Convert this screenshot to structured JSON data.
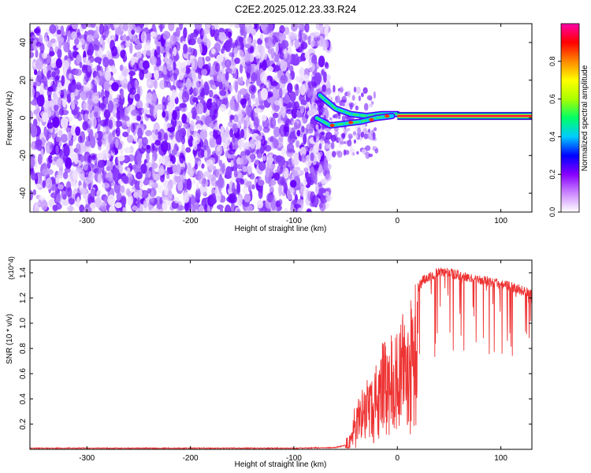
{
  "title": "C2E2.2025.012.23.33.R24",
  "chart_data": [
    {
      "type": "heatmap",
      "xlabel": "Height of straight line (km)",
      "ylabel": "Frequency (Hz)",
      "xlim": [
        -355,
        130
      ],
      "ylim": [
        -50,
        50
      ],
      "xticks": [
        -300,
        -200,
        -100,
        0,
        100
      ],
      "yticks": [
        -40,
        -20,
        0,
        20,
        40
      ],
      "grid": false,
      "colorbar": {
        "label": "Normalized spectral amplitude",
        "range": [
          0,
          1
        ],
        "ticks": [
          0.0,
          0.2,
          0.4,
          0.6,
          0.8
        ],
        "colors": [
          "#ffffff",
          "#cc88ff",
          "#8800ff",
          "#0000ff",
          "#00ccff",
          "#00ff66",
          "#aaff00",
          "#ffff00",
          "#ff8800",
          "#ff0000",
          "#ff00aa"
        ]
      },
      "features": {
        "noise_region_x": [
          -355,
          -72
        ],
        "transition_region_x": [
          -78,
          0
        ],
        "upper_branch": [
          [
            -75,
            12
          ],
          [
            -60,
            5
          ],
          [
            -45,
            2
          ],
          [
            -30,
            1
          ],
          [
            -15,
            2
          ],
          [
            0,
            2
          ]
        ],
        "lower_branch": [
          [
            -78,
            0
          ],
          [
            -65,
            -4
          ],
          [
            -50,
            -3
          ],
          [
            -35,
            -2
          ],
          [
            -20,
            0
          ],
          [
            -5,
            1
          ]
        ],
        "tone_x": [
          0,
          130
        ],
        "tone_frequency": 1
      }
    },
    {
      "type": "line",
      "xlabel": "Height of straight line (km)",
      "ylabel": "SNR (10 * v/v)",
      "y_multiplier": "(x10^4)",
      "xlim": [
        -355,
        130
      ],
      "ylim": [
        0,
        1.5
      ],
      "xticks": [
        -300,
        -200,
        -100,
        0,
        100
      ],
      "yticks": [
        0.2,
        0.4,
        0.6,
        0.8,
        1.0,
        1.2,
        1.4
      ],
      "grid": false,
      "color": "#ee3333",
      "series": [
        {
          "x": [
            -355,
            -300,
            -200,
            -100,
            -60,
            -50,
            -45,
            -40,
            -35,
            -30,
            -25,
            -20,
            -15,
            -10,
            -5,
            0,
            5,
            10,
            15,
            20,
            25,
            30,
            35,
            40,
            50,
            60,
            70,
            80,
            90,
            100,
            110,
            120,
            128
          ],
          "values": [
            0.005,
            0.005,
            0.005,
            0.005,
            0.01,
            0.03,
            0.12,
            0.35,
            0.45,
            0.55,
            0.62,
            0.72,
            0.82,
            0.92,
            0.98,
            0.95,
            1.05,
            1.15,
            1.25,
            1.32,
            1.38,
            1.4,
            1.42,
            1.45,
            1.44,
            1.42,
            1.4,
            1.38,
            1.37,
            1.35,
            1.33,
            1.3,
            1.28
          ]
        }
      ]
    }
  ]
}
